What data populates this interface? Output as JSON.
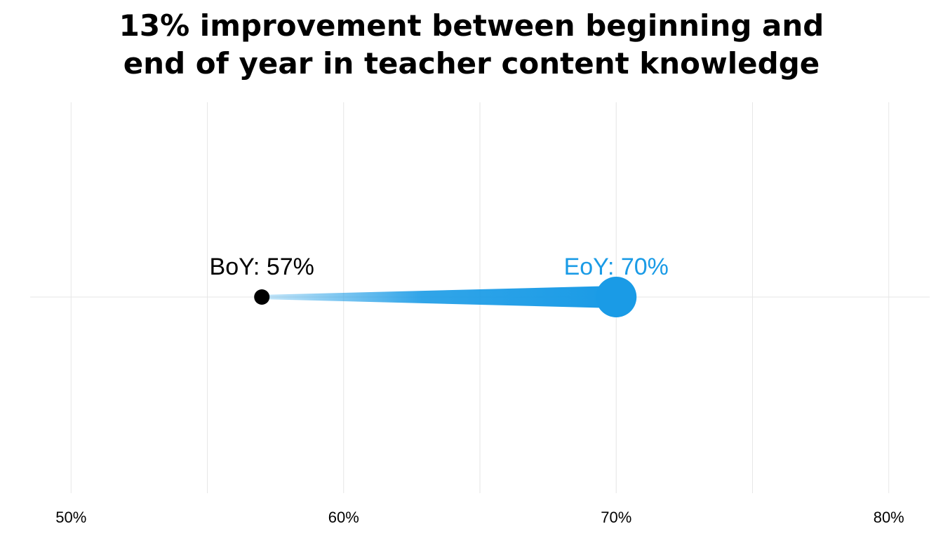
{
  "chart_data": {
    "type": "dumbbell",
    "title": [
      "13% improvement between beginning and",
      "end of year in teacher content knowledge"
    ],
    "xlabel": "",
    "ylabel": "",
    "xlim": [
      48.5,
      81.5
    ],
    "x_ticks": [
      50,
      60,
      70,
      80
    ],
    "x_tick_labels": [
      "50%",
      "60%",
      "70%",
      "80%"
    ],
    "x_minor_ticks": [
      55,
      65,
      75
    ],
    "grid": true,
    "legend": "none",
    "points": [
      {
        "label": "BoY: 57%",
        "value": 57,
        "color": "#000000"
      },
      {
        "label": "EoY: 70%",
        "value": 70,
        "color": "#1a9be6"
      }
    ],
    "connector_color": "#1a9be6"
  }
}
